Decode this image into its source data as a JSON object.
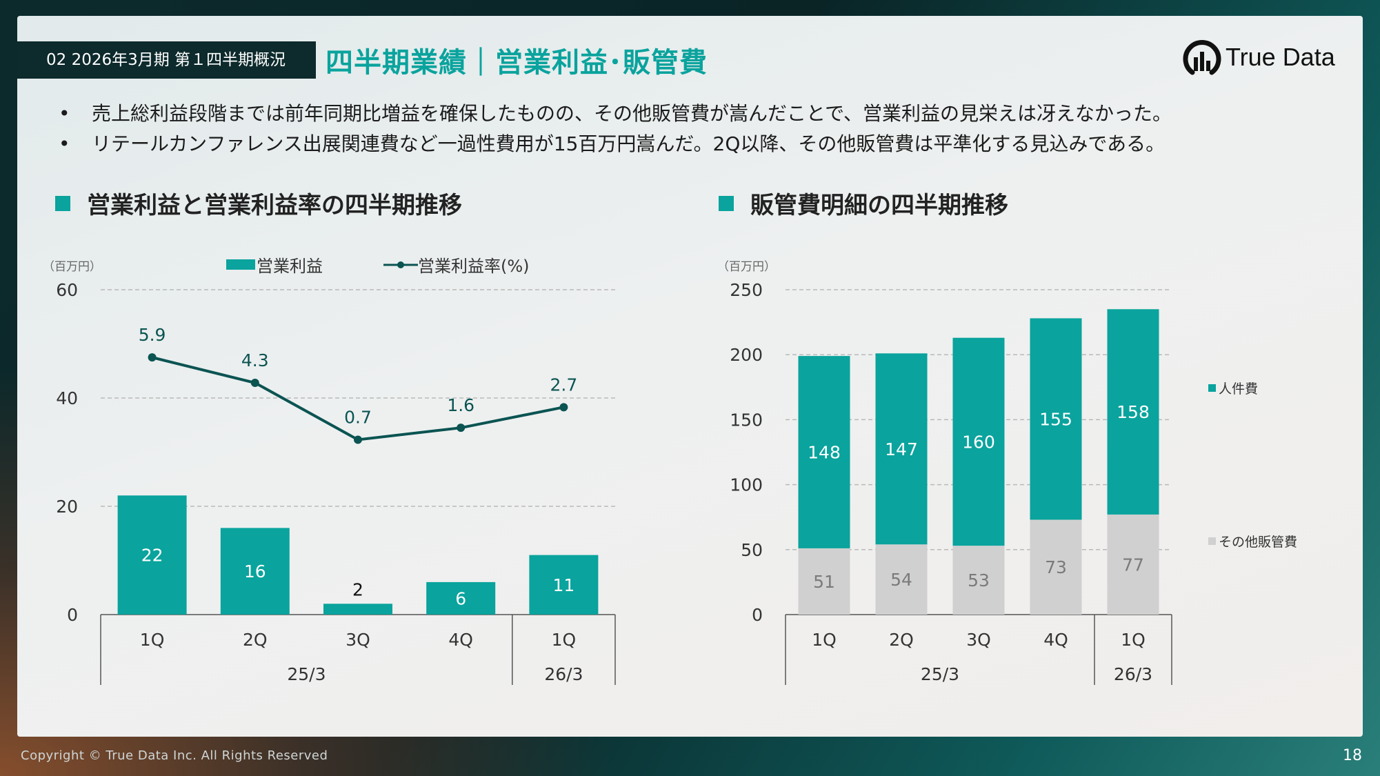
{
  "section_tag": "02 2026年3月期 第１四半期概況",
  "page_title": "四半期業績｜営業利益･販管費",
  "brand": {
    "name": "True Data",
    "accent": "#0aa39d"
  },
  "bullets": [
    "売上総利益段階までは前年同期比増益を確保したものの、その他販管費が嵩んだことで、営業利益の見栄えは冴えなかった。",
    "リテールカンファレンス出展関連費など一過性費用が15百万円嵩んだ。2Q以降、その他販管費は平準化する見込みである。"
  ],
  "footer": {
    "copyright": "Copyright © True Data Inc. All Rights Reserved",
    "page": "18"
  },
  "chart_data": [
    {
      "type": "bar",
      "title": "営業利益と営業利益率の四半期推移",
      "unit": "（百万円）",
      "categories": [
        "1Q",
        "2Q",
        "3Q",
        "4Q",
        "1Q"
      ],
      "groups": [
        {
          "label": "25/3",
          "count": 4
        },
        {
          "label": "26/3",
          "count": 1
        }
      ],
      "ylim": [
        0,
        60
      ],
      "yticks": [
        0,
        20,
        40,
        60
      ],
      "series": [
        {
          "name": "営業利益",
          "type": "bar",
          "color": "#0aa39d",
          "values": [
            22,
            16,
            2,
            6,
            11
          ]
        },
        {
          "name": "営業利益率(%)",
          "type": "line",
          "color": "#0b5452",
          "labels": [
            "5.9",
            "4.3",
            "0.7",
            "1.6",
            "2.7"
          ],
          "plot_values": [
            47.5,
            42.8,
            32.3,
            34.5,
            38.3
          ]
        }
      ],
      "grid": true,
      "legend": "top"
    },
    {
      "type": "bar",
      "stacked": true,
      "title": "販管費明細の四半期推移",
      "unit": "（百万円）",
      "categories": [
        "1Q",
        "2Q",
        "3Q",
        "4Q",
        "1Q"
      ],
      "groups": [
        {
          "label": "25/3",
          "count": 4
        },
        {
          "label": "26/3",
          "count": 1
        }
      ],
      "ylim": [
        0,
        250
      ],
      "yticks": [
        0,
        50,
        100,
        150,
        200,
        250
      ],
      "series": [
        {
          "name": "その他販管費",
          "color": "#d0d0d0",
          "label_color": "#7a7a7a",
          "values": [
            51,
            54,
            53,
            73,
            77
          ]
        },
        {
          "name": "人件費",
          "color": "#0aa39d",
          "label_color": "#ffffff",
          "values": [
            148,
            147,
            160,
            155,
            158
          ]
        }
      ],
      "grid": true,
      "legend": "right"
    }
  ]
}
